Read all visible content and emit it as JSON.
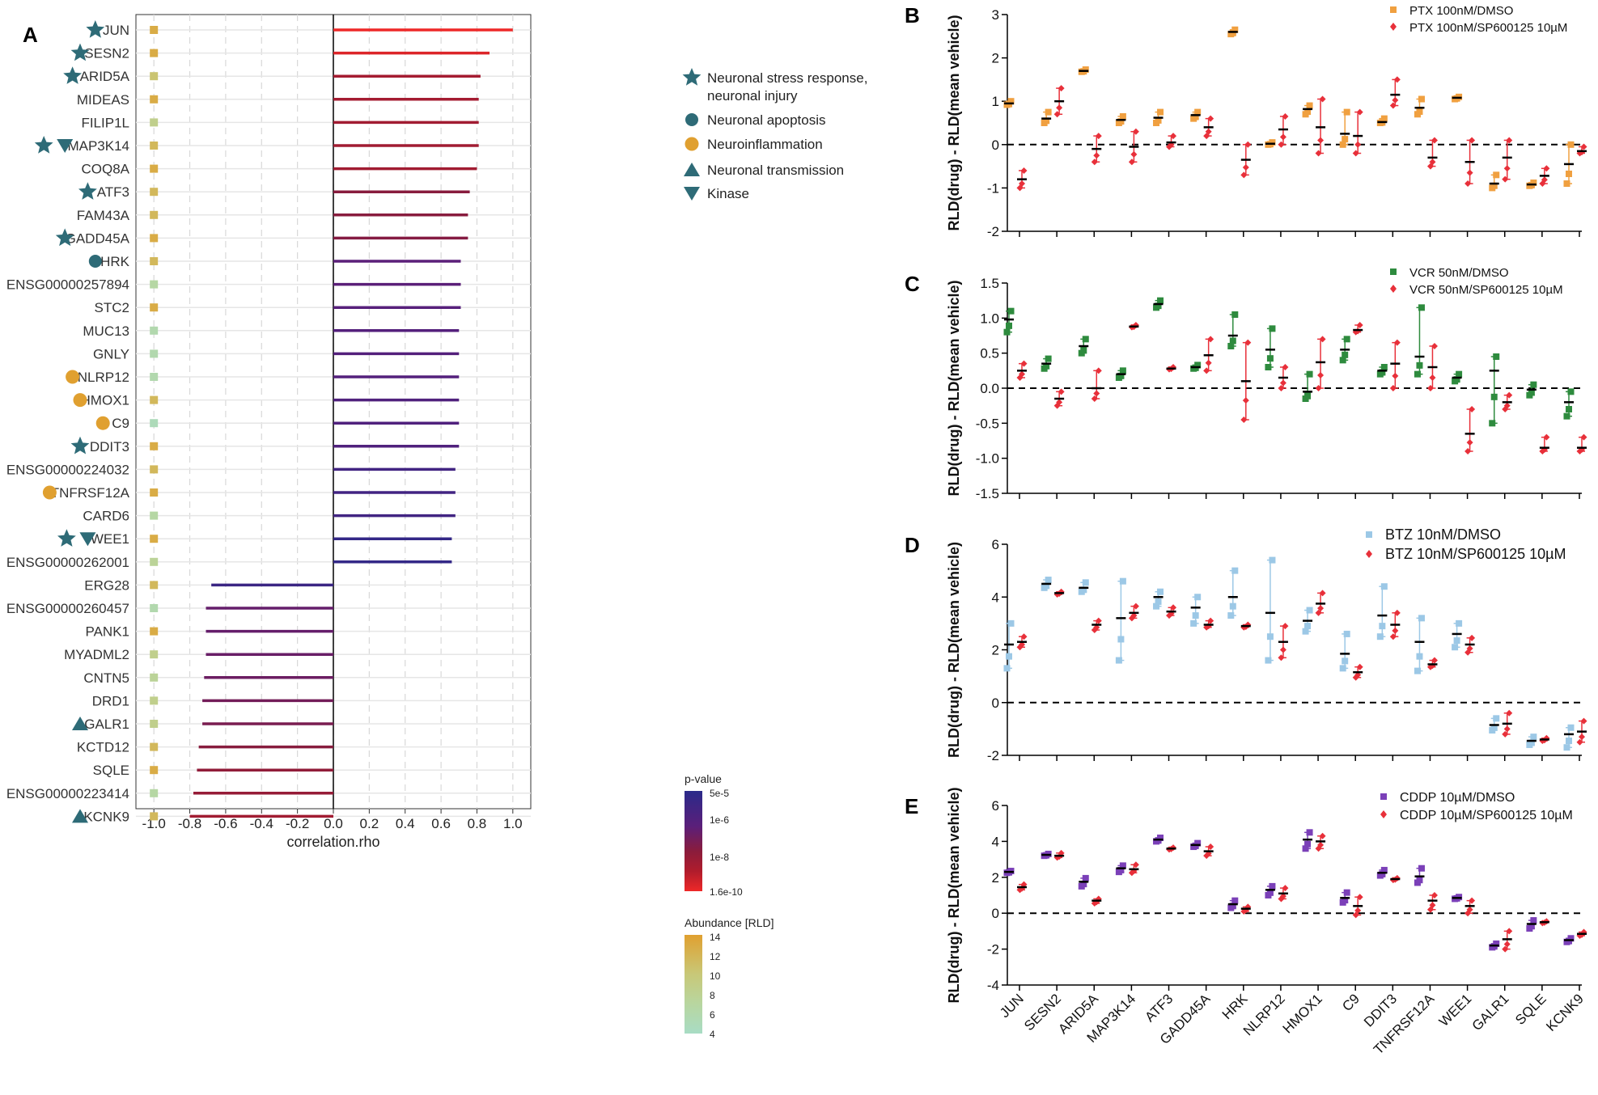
{
  "figure_title": "Gene correlation lollipop chart with drug-treatment dot plots",
  "colors": {
    "star_like": "#2e6b77",
    "neuroinflammation": "#e0a030",
    "ptx": "#f0a040",
    "vcr": "#2e8b3e",
    "btz": "#9cc8e6",
    "cddp": "#7b40b8",
    "sp": "#e8303a",
    "pv_low": "#2a2a8a",
    "pv_high": "#ee2828",
    "ab_low": "#a8dcc4",
    "ab_high": "#e0a030"
  },
  "chart_data": [
    {
      "panel": "A",
      "type": "bar",
      "orientation": "horizontal-lollipop",
      "xlabel": "correlation.rho",
      "xlim": [
        -1.1,
        1.1
      ],
      "xticks": [
        "-1.0",
        "-0.8",
        "-0.6",
        "-0.4",
        "-0.2",
        "0.0",
        "0.2",
        "0.4",
        "0.6",
        "0.8",
        "1.0"
      ],
      "categories": [
        "JUN",
        "SESN2",
        "ARID5A",
        "MIDEAS",
        "FILIP1L",
        "MAP3K14",
        "COQ8A",
        "ATF3",
        "FAM43A",
        "GADD45A",
        "HRK",
        "ENSG00000257894",
        "STC2",
        "MUC13",
        "GNLY",
        "NLRP12",
        "HMOX1",
        "C9",
        "DDIT3",
        "ENSG00000224032",
        "TNFRSF12A",
        "CARD6",
        "WEE1",
        "ENSG00000262001",
        "ERG28",
        "ENSG00000260457",
        "PANK1",
        "MYADML2",
        "CNTN5",
        "DRD1",
        "GALR1",
        "KCTD12",
        "SQLE",
        "ENSG00000223414",
        "KCNK9"
      ],
      "values": [
        1.0,
        0.87,
        0.82,
        0.81,
        0.81,
        0.81,
        0.8,
        0.76,
        0.75,
        0.75,
        0.71,
        0.71,
        0.71,
        0.7,
        0.7,
        0.7,
        0.7,
        0.7,
        0.7,
        0.68,
        0.68,
        0.68,
        0.66,
        0.66,
        -0.68,
        -0.71,
        -0.71,
        -0.71,
        -0.72,
        -0.73,
        -0.73,
        -0.75,
        -0.76,
        -0.78,
        -0.8
      ],
      "pvalue_log": [
        -9.8,
        -9.4,
        -8.0,
        -8.0,
        -7.9,
        -7.9,
        -7.9,
        -7.0,
        -7.0,
        -6.9,
        -5.7,
        -5.7,
        -5.6,
        -5.5,
        -5.5,
        -5.5,
        -5.4,
        -5.4,
        -5.4,
        -5.0,
        -5.0,
        -5.0,
        -4.6,
        -4.6,
        -4.8,
        -6.0,
        -6.0,
        -6.1,
        -6.2,
        -6.4,
        -6.6,
        -7.0,
        -7.3,
        -7.5,
        -7.9
      ],
      "abundance": [
        13,
        13,
        11,
        13,
        9,
        12,
        13,
        12,
        12,
        13,
        12,
        7,
        13,
        6,
        6,
        6,
        12,
        5,
        13,
        12,
        13,
        7,
        13,
        8,
        12,
        6,
        13,
        9,
        8,
        9,
        9,
        12,
        13,
        7,
        12
      ],
      "annotations": [
        [
          "star"
        ],
        [
          "star"
        ],
        [
          "star"
        ],
        [],
        [],
        [
          "star",
          "down"
        ],
        [],
        [
          "star"
        ],
        [],
        [
          "star"
        ],
        [
          "dot"
        ],
        [],
        [],
        [],
        [],
        [
          "orange"
        ],
        [
          "orange"
        ],
        [
          "orange"
        ],
        [
          "star"
        ],
        [],
        [
          "orange"
        ],
        [],
        [
          "star",
          "down"
        ],
        [],
        [],
        [],
        [],
        [],
        [],
        [],
        [
          "up"
        ],
        [],
        [],
        [],
        [
          "up"
        ]
      ],
      "legend": [
        {
          "shape": "star",
          "label": "Neuronal stress response,",
          "label2": "neuronal injury"
        },
        {
          "shape": "dot",
          "label": "Neuronal apoptosis",
          "label2": ""
        },
        {
          "shape": "orange",
          "label": "Neuroinflammation",
          "label2": ""
        },
        {
          "shape": "up",
          "label": "Neuronal transmission",
          "label2": ""
        },
        {
          "shape": "down",
          "label": "Kinase",
          "label2": ""
        }
      ],
      "pvalue_legend": {
        "title": "p-value",
        "ticks": [
          "5e-5",
          "1e-6",
          "1e-8",
          "1.6e-10"
        ]
      },
      "abundance_legend": {
        "title": "Abundance [RLD]",
        "ticks": [
          "14",
          "12",
          "10",
          "8",
          "6",
          "4"
        ]
      }
    },
    {
      "panel": "B",
      "type": "scatter",
      "ylabel": "RLD(drug) - RLD(mean vehicle)",
      "ylim": [
        -2,
        3
      ],
      "yticks": [
        "-2",
        "-1",
        "0",
        "1",
        "2",
        "3"
      ],
      "series": [
        {
          "name": "PTX 100nM/DMSO",
          "marker": "square",
          "means": [
            0.95,
            0.6,
            1.7,
            0.57,
            0.62,
            0.68,
            2.6,
            0.02,
            0.82,
            0.25,
            0.52,
            0.85,
            1.08,
            -0.9,
            -0.92,
            -0.45
          ],
          "lo": [
            0.92,
            0.5,
            1.68,
            0.5,
            0.5,
            0.6,
            2.55,
            0.0,
            0.7,
            0.0,
            0.5,
            0.7,
            1.05,
            -1.0,
            -0.95,
            -0.9
          ],
          "hi": [
            1.0,
            0.75,
            1.73,
            0.65,
            0.75,
            0.75,
            2.65,
            0.05,
            0.9,
            0.75,
            0.6,
            1.05,
            1.1,
            -0.7,
            -0.88,
            0.0
          ]
        },
        {
          "name": "PTX 100nM/SP600125 10µM",
          "marker": "diamond",
          "means": [
            -0.8,
            1.0,
            -0.1,
            -0.05,
            0.05,
            0.4,
            -0.35,
            0.35,
            0.4,
            0.2,
            1.15,
            -0.3,
            -0.4,
            -0.3,
            -0.72,
            -0.15
          ],
          "lo": [
            -1.0,
            0.7,
            -0.4,
            -0.4,
            -0.05,
            0.2,
            -0.7,
            0.0,
            -0.2,
            -0.2,
            0.9,
            -0.5,
            -0.9,
            -0.8,
            -0.9,
            -0.2
          ],
          "hi": [
            -0.6,
            1.3,
            0.2,
            0.3,
            0.2,
            0.6,
            0.0,
            0.65,
            1.05,
            0.75,
            1.5,
            0.1,
            0.1,
            0.1,
            -0.55,
            -0.05
          ]
        }
      ],
      "legend_labels": [
        "PTX 100nM/DMSO",
        "PTX 100nM/SP600125 10µM"
      ]
    },
    {
      "panel": "C",
      "type": "scatter",
      "ylabel": "RLD(drug) - RLD(mean vehicle)",
      "ylim": [
        -1.5,
        1.5
      ],
      "yticks": [
        "-1.5",
        "-1.0",
        "-0.5",
        "0.0",
        "0.5",
        "1.0",
        "1.5"
      ],
      "series": [
        {
          "name": "VCR 50nM/DMSO",
          "marker": "square",
          "means": [
            0.98,
            0.35,
            0.6,
            0.2,
            1.2,
            0.3,
            0.75,
            0.55,
            -0.05,
            0.55,
            0.25,
            0.45,
            0.15,
            0.25,
            -0.02,
            -0.2
          ],
          "lo": [
            0.8,
            0.28,
            0.5,
            0.15,
            1.15,
            0.28,
            0.6,
            0.3,
            -0.15,
            0.4,
            0.2,
            0.2,
            0.1,
            -0.5,
            -0.1,
            -0.4
          ],
          "hi": [
            1.1,
            0.42,
            0.7,
            0.25,
            1.25,
            0.33,
            1.05,
            0.85,
            0.2,
            0.7,
            0.3,
            1.15,
            0.2,
            0.45,
            0.05,
            -0.05
          ]
        },
        {
          "name": "VCR 50nM/SP600125 10µM",
          "marker": "diamond",
          "means": [
            0.25,
            -0.15,
            0.0,
            0.88,
            0.28,
            0.47,
            0.1,
            0.15,
            0.37,
            0.83,
            0.35,
            0.3,
            -0.65,
            -0.2,
            -0.85,
            -0.85
          ],
          "lo": [
            0.15,
            -0.25,
            -0.15,
            0.87,
            0.27,
            0.25,
            -0.45,
            0.0,
            0.0,
            0.8,
            0.0,
            0.0,
            -0.9,
            -0.3,
            -0.9,
            -0.9
          ],
          "hi": [
            0.35,
            -0.05,
            0.25,
            0.9,
            0.3,
            0.7,
            0.65,
            0.3,
            0.7,
            0.9,
            0.65,
            0.6,
            -0.3,
            -0.1,
            -0.7,
            -0.7
          ]
        }
      ],
      "legend_labels": [
        "VCR 50nM/DMSO",
        "VCR 50nM/SP600125 10µM"
      ]
    },
    {
      "panel": "D",
      "type": "scatter",
      "ylabel": "RLD(drug) - RLD(mean vehicle)",
      "ylim": [
        -2,
        6
      ],
      "yticks": [
        "-2",
        "0",
        "2",
        "4",
        "6"
      ],
      "series": [
        {
          "name": "BTZ 10nM/DMSO",
          "marker": "square",
          "means": [
            2.2,
            4.5,
            4.35,
            3.2,
            4.0,
            3.6,
            4.0,
            3.4,
            3.1,
            1.85,
            3.3,
            2.3,
            2.6,
            -0.85,
            -1.45,
            -1.2
          ],
          "lo": [
            1.3,
            4.35,
            4.2,
            1.6,
            3.65,
            3.0,
            3.3,
            1.6,
            2.7,
            1.3,
            2.5,
            1.2,
            2.1,
            -1.05,
            -1.6,
            -1.7
          ],
          "hi": [
            3.0,
            4.65,
            4.55,
            4.6,
            4.2,
            4.0,
            5.0,
            5.4,
            3.5,
            2.6,
            4.4,
            3.2,
            3.0,
            -0.6,
            -1.3,
            -0.95
          ]
        },
        {
          "name": "BTZ 10nM/SP600125 10µM",
          "marker": "diamond",
          "means": [
            2.3,
            4.15,
            2.95,
            3.4,
            3.45,
            2.95,
            2.9,
            2.3,
            3.75,
            1.15,
            2.95,
            1.45,
            2.2,
            -0.8,
            -1.4,
            -1.1
          ],
          "lo": [
            2.1,
            4.1,
            2.75,
            3.2,
            3.3,
            2.85,
            2.85,
            1.7,
            3.4,
            0.95,
            2.5,
            1.35,
            1.9,
            -1.2,
            -1.45,
            -1.5
          ],
          "hi": [
            2.5,
            4.2,
            3.1,
            3.65,
            3.6,
            3.1,
            2.95,
            2.9,
            4.15,
            1.35,
            3.4,
            1.6,
            2.45,
            -0.4,
            -1.35,
            -0.7
          ]
        }
      ],
      "legend_labels": [
        "BTZ 10nM/DMSO",
        "BTZ 10nM/SP600125 10µM"
      ]
    },
    {
      "panel": "E",
      "type": "scatter",
      "ylabel": "RLD(drug) - RLD(mean vehicle)",
      "ylim": [
        -4,
        6
      ],
      "yticks": [
        "-4",
        "-2",
        "0",
        "2",
        "4",
        "6"
      ],
      "xlabel_categories": [
        "JUN",
        "SESN2",
        "ARID5A",
        "MAP3K14",
        "ATF3",
        "GADD45A",
        "HRK",
        "NLRP12",
        "HMOX1",
        "C9",
        "DDIT3",
        "TNFRSF12A",
        "WEE1",
        "GALR1",
        "SQLE",
        "KCNK9"
      ],
      "series": [
        {
          "name": "CDDP 10µM/DMSO",
          "marker": "square",
          "means": [
            2.3,
            3.25,
            1.75,
            2.5,
            4.1,
            3.8,
            0.5,
            1.3,
            4.1,
            0.85,
            2.25,
            2.05,
            0.85,
            -1.8,
            -0.6,
            -1.5
          ],
          "lo": [
            2.25,
            3.2,
            1.5,
            2.3,
            4.0,
            3.7,
            0.3,
            1.0,
            3.6,
            0.6,
            2.1,
            1.7,
            0.8,
            -1.9,
            -0.85,
            -1.6
          ],
          "hi": [
            2.35,
            3.3,
            1.95,
            2.65,
            4.2,
            3.9,
            0.7,
            1.5,
            4.5,
            1.15,
            2.4,
            2.5,
            0.9,
            -1.7,
            -0.4,
            -1.4
          ]
        },
        {
          "name": "CDDP 10µM/SP600125 10µM",
          "marker": "diamond",
          "means": [
            1.45,
            3.2,
            0.7,
            2.45,
            3.6,
            3.45,
            0.25,
            1.1,
            4.0,
            0.4,
            1.9,
            0.7,
            0.4,
            -1.45,
            -0.5,
            -1.15
          ],
          "lo": [
            1.3,
            3.1,
            0.55,
            2.25,
            3.55,
            3.2,
            0.1,
            0.8,
            3.6,
            -0.1,
            1.85,
            0.2,
            0.0,
            -2.0,
            -0.55,
            -1.25
          ],
          "hi": [
            1.6,
            3.35,
            0.8,
            2.7,
            3.65,
            3.7,
            0.35,
            1.4,
            4.3,
            0.9,
            1.95,
            1.0,
            0.7,
            -1.0,
            -0.45,
            -1.05
          ]
        }
      ],
      "legend_labels": [
        "CDDP 10µM/DMSO",
        "CDDP 10µM/SP600125 10µM"
      ]
    }
  ]
}
